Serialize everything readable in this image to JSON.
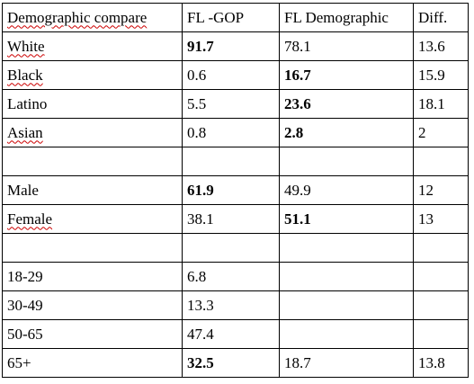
{
  "header": {
    "category": "Demographic compare",
    "fl_gop": "FL -GOP",
    "fl_demographic": "FL Demographic",
    "diff": "Diff."
  },
  "rows": [
    {
      "label": "White",
      "fl_gop": "91.7",
      "fl_demographic": "78.1",
      "diff": "13.6"
    },
    {
      "label": "Black",
      "fl_gop": "0.6",
      "fl_demographic": "16.7",
      "diff": "15.9"
    },
    {
      "label": "Latino",
      "fl_gop": "5.5",
      "fl_demographic": "23.6",
      "diff": "18.1"
    },
    {
      "label": "Asian",
      "fl_gop": "0.8",
      "fl_demographic": "2.8",
      "diff": "2"
    },
    {
      "label": "",
      "fl_gop": "",
      "fl_demographic": "",
      "diff": ""
    },
    {
      "label": "Male",
      "fl_gop": "61.9",
      "fl_demographic": "49.9",
      "diff": "12"
    },
    {
      "label": "Female",
      "fl_gop": "38.1",
      "fl_demographic": "51.1",
      "diff": "13"
    },
    {
      "label": "",
      "fl_gop": "",
      "fl_demographic": "",
      "diff": ""
    },
    {
      "label": "18-29",
      "fl_gop": "6.8",
      "fl_demographic": "",
      "diff": ""
    },
    {
      "label": "30-49",
      "fl_gop": "13.3",
      "fl_demographic": "",
      "diff": ""
    },
    {
      "label": "50-65",
      "fl_gop": "47.4",
      "fl_demographic": "",
      "diff": ""
    },
    {
      "label": "65+",
      "fl_gop": "32.5",
      "fl_demographic": "18.7",
      "diff": "13.8"
    }
  ],
  "colors": {
    "border": "#000000",
    "text": "#000000",
    "spellcheck_underline": "#cc0000"
  }
}
